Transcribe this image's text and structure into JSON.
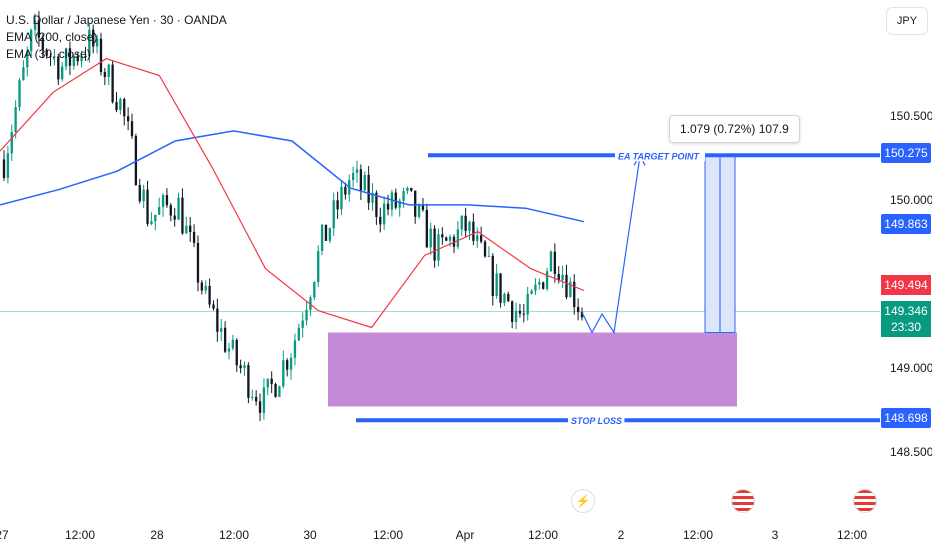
{
  "legend": {
    "symbol": "U.S. Dollar / Japanese Yen · 30 · OANDA",
    "ema1": "EMA (200, close)",
    "ema2": "EMA (30, close)"
  },
  "currency": "JPY",
  "colors": {
    "up": "#089981",
    "down": "#131722",
    "ema200": "#2962ff",
    "ema30": "#f23645",
    "zone": "#c58ad8",
    "level": "#2962ff",
    "projection_fill": "#dbe5fb"
  },
  "icons": [
    "lightning-icon",
    "us-flag-icon",
    "us-flag-icon"
  ],
  "measurement": "1.079 (0.72%) 107.9",
  "price_tags": {
    "target": "150.275",
    "ema200": "149.863",
    "ema30": "149.494",
    "last": "149.346",
    "countdown": "23:30",
    "stop": "148.698"
  },
  "chart_data": {
    "type": "candlestick",
    "title": "U.S. Dollar / Japanese Yen · 30 · OANDA",
    "y_ticks": [
      "150.500",
      "150.000",
      "149.000",
      "148.500"
    ],
    "x_ticks": [
      "27",
      "12:00",
      "28",
      "12:00",
      "30",
      "12:00",
      "Apr",
      "12:00",
      "2",
      "12:00",
      "3",
      "12:00"
    ],
    "ylim": [
      148.33,
      151.12
    ],
    "annotations": [
      {
        "label": "EA TARGET POINT",
        "price": 150.275
      },
      {
        "label": "STOP LOSS",
        "price": 148.698
      }
    ],
    "demand_zone": [
      148.78,
      149.22
    ],
    "close_path": [
      150.25,
      151.0,
      150.8,
      150.95,
      150.6,
      149.9,
      150.0,
      149.4,
      149.05,
      148.8,
      149.15,
      149.75,
      150.15,
      149.95,
      150.0,
      149.7,
      149.85,
      149.5,
      149.3,
      149.7,
      149.35
    ],
    "ema200_path": [
      149.98,
      150.07,
      150.18,
      150.36,
      150.42,
      150.36,
      150.08,
      149.98,
      149.98,
      149.96,
      149.88
    ],
    "ema30_path": [
      150.3,
      150.65,
      150.85,
      150.75,
      150.2,
      149.6,
      149.35,
      149.25,
      149.68,
      149.82,
      149.6,
      149.47
    ],
    "projection_path": [
      149.34,
      149.22,
      149.33,
      149.22,
      150.27
    ]
  }
}
